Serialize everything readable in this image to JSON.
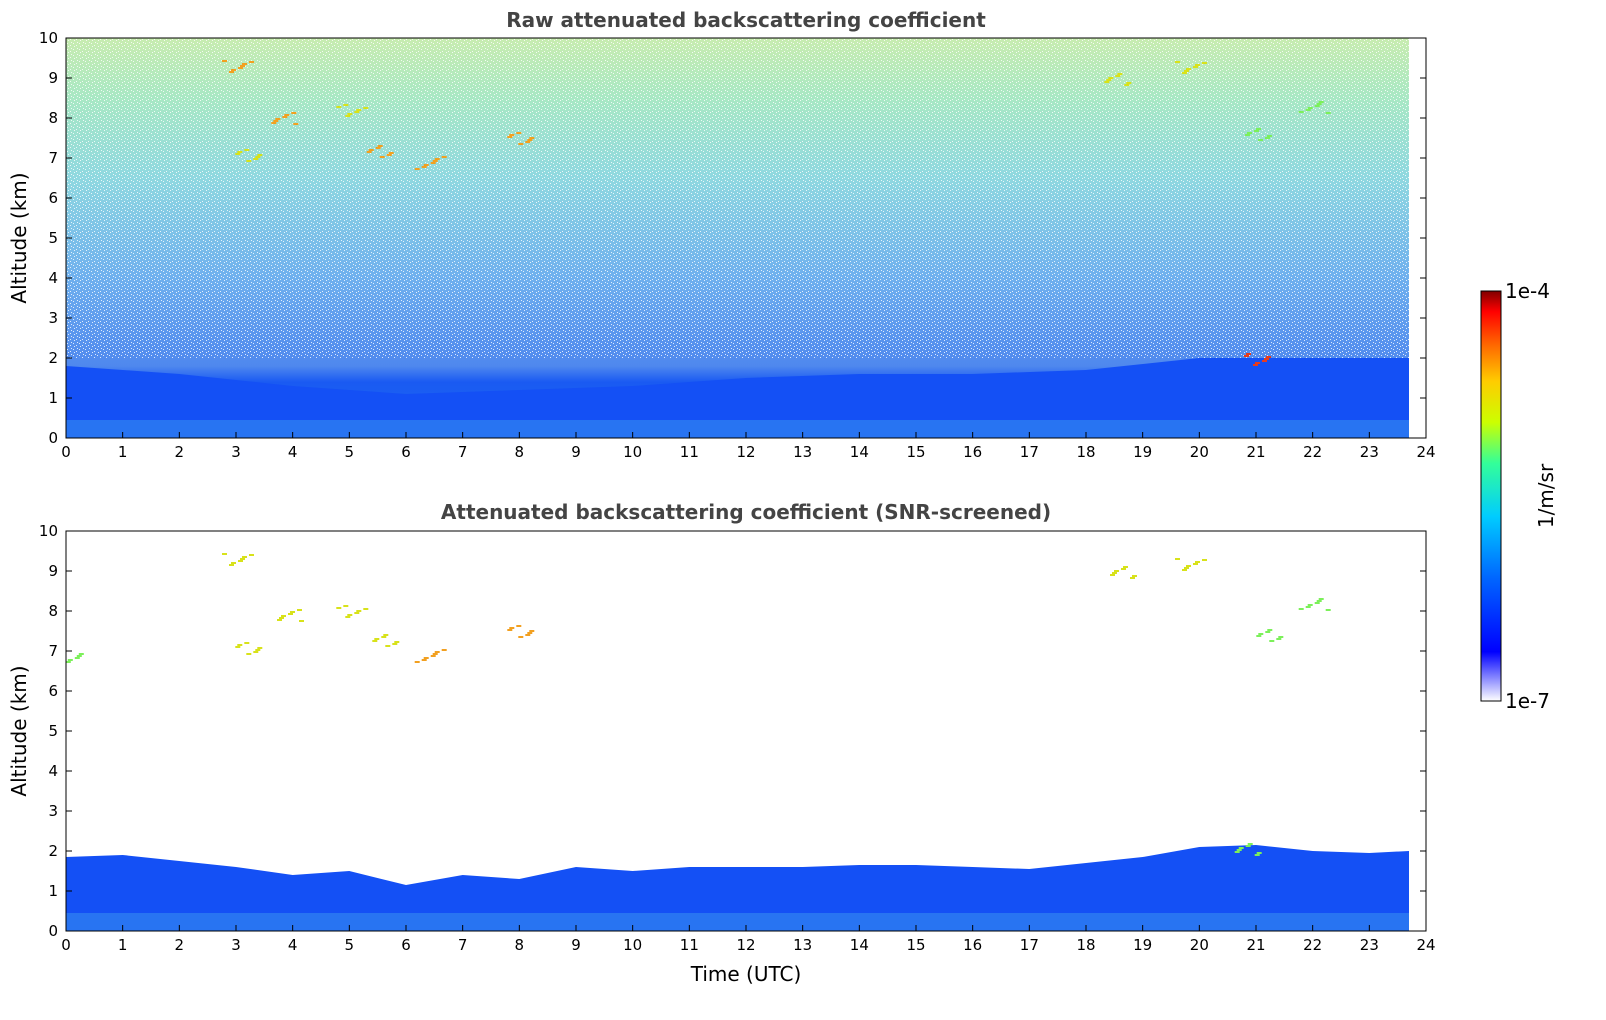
{
  "chart_data": [
    {
      "type": "heatmap",
      "title": "Raw attenuated backscattering coefficient",
      "ylabel": "Altitude (km)",
      "xlabel": "",
      "xlim": [
        0,
        24
      ],
      "ylim": [
        0,
        10
      ],
      "x_ticks": [
        "0",
        "1",
        "2",
        "3",
        "4",
        "5",
        "6",
        "7",
        "8",
        "9",
        "10",
        "11",
        "12",
        "13",
        "14",
        "15",
        "16",
        "17",
        "18",
        "19",
        "20",
        "21",
        "22",
        "23",
        "24"
      ],
      "y_ticks": [
        "0",
        "1",
        "2",
        "3",
        "4",
        "5",
        "6",
        "7",
        "8",
        "9",
        "10"
      ],
      "data_extent_hours": [
        0,
        23.7
      ],
      "boundary_layer_top_km": [
        {
          "x": 0,
          "y": 1.8
        },
        {
          "x": 2,
          "y": 1.6
        },
        {
          "x": 4,
          "y": 1.3
        },
        {
          "x": 6,
          "y": 1.1
        },
        {
          "x": 8,
          "y": 1.2
        },
        {
          "x": 10,
          "y": 1.3
        },
        {
          "x": 12,
          "y": 1.5
        },
        {
          "x": 14,
          "y": 1.6
        },
        {
          "x": 16,
          "y": 1.6
        },
        {
          "x": 18,
          "y": 1.7
        },
        {
          "x": 20,
          "y": 2.0
        },
        {
          "x": 22,
          "y": 2.0
        },
        {
          "x": 23.7,
          "y": 2.0
        }
      ],
      "cloud_features": [
        {
          "t": 3.0,
          "alt": 9.3,
          "value": "orange"
        },
        {
          "t": 3.2,
          "alt": 7.1,
          "value": "yellow"
        },
        {
          "t": 3.8,
          "alt": 8.0,
          "value": "orange"
        },
        {
          "t": 5.0,
          "alt": 8.2,
          "value": "yellow"
        },
        {
          "t": 5.5,
          "alt": 7.2,
          "value": "orange"
        },
        {
          "t": 6.4,
          "alt": 6.9,
          "value": "orange"
        },
        {
          "t": 8.0,
          "alt": 7.5,
          "value": "orange"
        },
        {
          "t": 18.5,
          "alt": 9.0,
          "value": "yellow"
        },
        {
          "t": 19.8,
          "alt": 9.3,
          "value": "yellow"
        },
        {
          "t": 21.0,
          "alt": 7.6,
          "value": "green"
        },
        {
          "t": 22.0,
          "alt": 8.3,
          "value": "green"
        },
        {
          "t": 21.0,
          "alt": 2.0,
          "value": "red"
        }
      ]
    },
    {
      "type": "heatmap",
      "title": "Attenuated backscattering coefficient (SNR-screened)",
      "ylabel": "Altitude (km)",
      "xlabel": "Time (UTC)",
      "xlim": [
        0,
        24
      ],
      "ylim": [
        0,
        10
      ],
      "x_ticks": [
        "0",
        "1",
        "2",
        "3",
        "4",
        "5",
        "6",
        "7",
        "8",
        "9",
        "10",
        "11",
        "12",
        "13",
        "14",
        "15",
        "16",
        "17",
        "18",
        "19",
        "20",
        "21",
        "22",
        "23",
        "24"
      ],
      "y_ticks": [
        "0",
        "1",
        "2",
        "3",
        "4",
        "5",
        "6",
        "7",
        "8",
        "9",
        "10"
      ],
      "data_extent_hours": [
        0,
        23.7
      ],
      "boundary_layer_top_km": [
        {
          "x": 0,
          "y": 1.85
        },
        {
          "x": 1,
          "y": 1.9
        },
        {
          "x": 2,
          "y": 1.75
        },
        {
          "x": 3,
          "y": 1.6
        },
        {
          "x": 4,
          "y": 1.4
        },
        {
          "x": 5,
          "y": 1.5
        },
        {
          "x": 6,
          "y": 1.15
        },
        {
          "x": 7,
          "y": 1.4
        },
        {
          "x": 8,
          "y": 1.3
        },
        {
          "x": 9,
          "y": 1.6
        },
        {
          "x": 10,
          "y": 1.5
        },
        {
          "x": 11,
          "y": 1.6
        },
        {
          "x": 12,
          "y": 1.6
        },
        {
          "x": 13,
          "y": 1.6
        },
        {
          "x": 14,
          "y": 1.65
        },
        {
          "x": 15,
          "y": 1.65
        },
        {
          "x": 16,
          "y": 1.6
        },
        {
          "x": 17,
          "y": 1.55
        },
        {
          "x": 18,
          "y": 1.7
        },
        {
          "x": 19,
          "y": 1.85
        },
        {
          "x": 20,
          "y": 2.1
        },
        {
          "x": 21,
          "y": 2.15
        },
        {
          "x": 22,
          "y": 2.0
        },
        {
          "x": 23,
          "y": 1.95
        },
        {
          "x": 23.7,
          "y": 2.0
        }
      ],
      "cloud_features": [
        {
          "t": 3.0,
          "alt": 9.3,
          "value": "yellow"
        },
        {
          "t": 3.2,
          "alt": 7.1,
          "value": "yellow"
        },
        {
          "t": 3.9,
          "alt": 7.9,
          "value": "yellow"
        },
        {
          "t": 5.0,
          "alt": 8.0,
          "value": "yellow"
        },
        {
          "t": 5.6,
          "alt": 7.3,
          "value": "yellow"
        },
        {
          "t": 6.4,
          "alt": 6.9,
          "value": "orange"
        },
        {
          "t": 8.0,
          "alt": 7.5,
          "value": "orange"
        },
        {
          "t": 18.6,
          "alt": 9.0,
          "value": "yellow"
        },
        {
          "t": 19.8,
          "alt": 9.2,
          "value": "yellow"
        },
        {
          "t": 21.2,
          "alt": 7.4,
          "value": "green"
        },
        {
          "t": 22.0,
          "alt": 8.2,
          "value": "green"
        },
        {
          "t": 0.05,
          "alt": 6.9,
          "value": "green"
        },
        {
          "t": 20.8,
          "alt": 2.05,
          "value": "green"
        }
      ]
    }
  ],
  "colorbar": {
    "label": "1/m/sr",
    "max_label": "1e-4",
    "min_label": "1e-7",
    "scale": "log",
    "colors": [
      "#ffffff",
      "#0000ff",
      "#0066ff",
      "#00ccff",
      "#33ff99",
      "#ccff00",
      "#ffcc00",
      "#ff6600",
      "#ff0000",
      "#800000"
    ]
  }
}
